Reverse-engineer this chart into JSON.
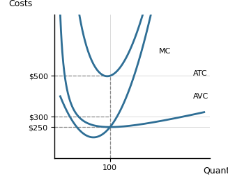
{
  "title": "",
  "xlabel": "Quantity",
  "ylabel": "Costs",
  "xlim": [
    0,
    280
  ],
  "ylim": [
    100,
    800
  ],
  "yticks": [
    250,
    300,
    500
  ],
  "ytick_labels": [
    "$250",
    "$300",
    "$500"
  ],
  "xticks": [
    100
  ],
  "xtick_labels": [
    "100"
  ],
  "dashed_x": 100,
  "curve_color": "#2E6E95",
  "background_color": "#ffffff",
  "grid_color": "#cccccc",
  "label_MC": "MC",
  "label_ATC": "ATC",
  "label_AVC": "AVC"
}
